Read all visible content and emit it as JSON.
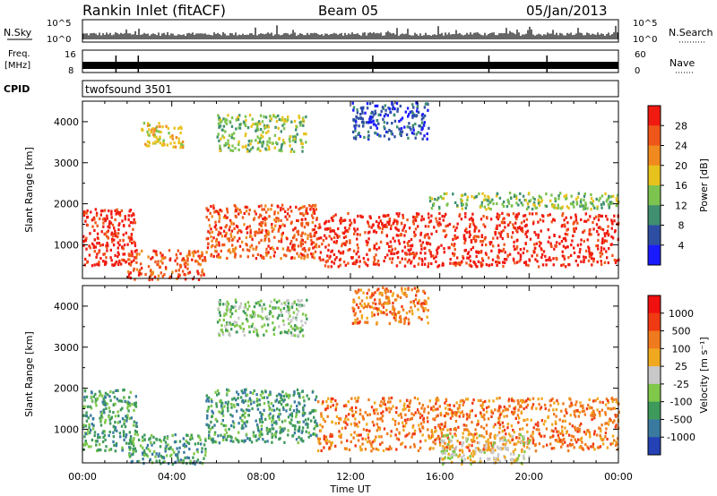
{
  "header": {
    "title": "Rankin Inlet (fitACF)",
    "beam": "Beam 05",
    "date": "05/Jan/2013"
  },
  "strips": {
    "nsky_label": "N.Sky",
    "nsky_ticks": [
      "10^5",
      "10^0"
    ],
    "nsearch_label": "N.Search",
    "freq_label_1": "Freq.",
    "freq_label_2": "[MHz]",
    "freq_ticks": [
      "16",
      "8"
    ],
    "nave_ticks": [
      "60",
      "0"
    ],
    "nave_label": "Nave",
    "cpid_label": "CPID",
    "cpid_text": "twofsound 3501"
  },
  "colors": {
    "power": [
      "#1a1aff",
      "#2e4ea3",
      "#3f8f70",
      "#7cc34f",
      "#e8c21c",
      "#f08a1e",
      "#f0561a",
      "#f01a10"
    ],
    "velocity": [
      "#2442b5",
      "#3a7aa0",
      "#3e9a5a",
      "#7fc84a",
      "#c8c8c8",
      "#f0a81e",
      "#f07a1e",
      "#f03a14",
      "#f01010"
    ]
  },
  "chart_data": [
    {
      "type": "heatmap",
      "name": "power",
      "ylabel": "Slant Range [km]",
      "xlabel": "Time UT",
      "x_ticks": [
        "00:00",
        "04:00",
        "08:00",
        "12:00",
        "16:00",
        "20:00",
        "00:00"
      ],
      "y_ticks": [
        "1000",
        "2000",
        "3000",
        "4000"
      ],
      "xlim": [
        0,
        24
      ],
      "ylim": [
        180,
        4500
      ],
      "colorbar": {
        "label": "Power [dB]",
        "ticks": [
          "28",
          "24",
          "20",
          "16",
          "12",
          "8",
          "4"
        ]
      },
      "regions": [
        {
          "t": [
            0,
            2.4
          ],
          "r": [
            500,
            1900
          ],
          "level": 7
        },
        {
          "t": [
            2.0,
            5.5
          ],
          "r": [
            180,
            900
          ],
          "level": 6
        },
        {
          "t": [
            5.5,
            10.5
          ],
          "r": [
            700,
            2000
          ],
          "level": 6
        },
        {
          "t": [
            10.5,
            24
          ],
          "r": [
            500,
            1800
          ],
          "level": 7
        },
        {
          "t": [
            2.5,
            4.5
          ],
          "r": [
            3400,
            4000
          ],
          "level": 4
        },
        {
          "t": [
            6.0,
            10.0
          ],
          "r": [
            3300,
            4200
          ],
          "level": 3
        },
        {
          "t": [
            12.0,
            15.5
          ],
          "r": [
            3600,
            4500
          ],
          "level": 1
        },
        {
          "t": [
            15.5,
            24
          ],
          "r": [
            1900,
            2300
          ],
          "level": 3
        }
      ]
    },
    {
      "type": "heatmap",
      "name": "velocity",
      "ylabel": "Slant Range [km]",
      "xlabel": "Time UT",
      "x_ticks": [
        "00:00",
        "04:00",
        "08:00",
        "12:00",
        "16:00",
        "20:00",
        "00:00"
      ],
      "y_ticks": [
        "1000",
        "2000",
        "3000",
        "4000"
      ],
      "xlim": [
        0,
        24
      ],
      "ylim": [
        180,
        4500
      ],
      "colorbar": {
        "label": "Velocity [m s⁻¹]",
        "ticks": [
          "1000",
          "500",
          "100",
          "25",
          "-25",
          "-100",
          "-500",
          "-1000"
        ]
      },
      "regions": [
        {
          "t": [
            0,
            2.4
          ],
          "r": [
            500,
            2000
          ],
          "level": 2
        },
        {
          "t": [
            2.0,
            5.5
          ],
          "r": [
            180,
            900
          ],
          "level": 2
        },
        {
          "t": [
            5.5,
            10.5
          ],
          "r": [
            700,
            2000
          ],
          "level": 2
        },
        {
          "t": [
            10.5,
            24
          ],
          "r": [
            500,
            1800
          ],
          "level": 6
        },
        {
          "t": [
            16.0,
            20.0
          ],
          "r": [
            180,
            900
          ],
          "level": 4
        },
        {
          "t": [
            6.0,
            10.0
          ],
          "r": [
            3300,
            4200
          ],
          "level": 3
        },
        {
          "t": [
            12.0,
            15.5
          ],
          "r": [
            3600,
            4500
          ],
          "level": 6
        }
      ]
    }
  ]
}
